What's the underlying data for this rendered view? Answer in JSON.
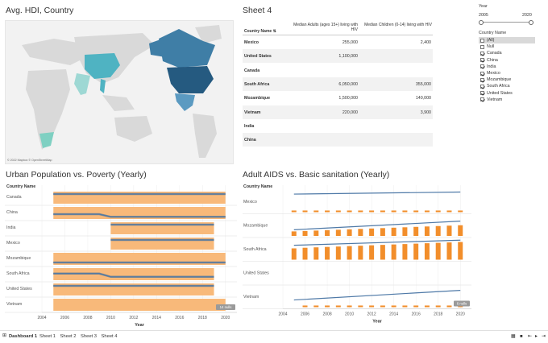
{
  "map_section": {
    "title": "Avg. HDI, Country",
    "credit": "© 2022 Mapbox © OpenStreetMap"
  },
  "table_section": {
    "title": "Sheet 4",
    "col_country": "Country Name",
    "col_adults": "Median Adults (ages 15+) living with HIV",
    "col_children": "Median Children (0-14) living with HIV",
    "rows": [
      {
        "country": "Mexico",
        "adults": "255,000",
        "children": "2,400"
      },
      {
        "country": "United States",
        "adults": "1,100,000",
        "children": ""
      },
      {
        "country": "Canada",
        "adults": "",
        "children": ""
      },
      {
        "country": "South Africa",
        "adults": "6,050,000",
        "children": "355,000"
      },
      {
        "country": "Mozambique",
        "adults": "1,500,000",
        "children": "140,000"
      },
      {
        "country": "Vietnam",
        "adults": "220,000",
        "children": "3,900"
      },
      {
        "country": "India",
        "adults": "",
        "children": ""
      },
      {
        "country": "China",
        "adults": "",
        "children": ""
      }
    ]
  },
  "filters": {
    "year_title": "Year",
    "year_min": "2005",
    "year_max": "2020",
    "country_title": "Country Name",
    "items": [
      {
        "label": "(All)",
        "checked": false
      },
      {
        "label": "Null",
        "checked": false
      },
      {
        "label": "Canada",
        "checked": true
      },
      {
        "label": "China",
        "checked": true
      },
      {
        "label": "India",
        "checked": true
      },
      {
        "label": "Mexico",
        "checked": true
      },
      {
        "label": "Mozambique",
        "checked": true
      },
      {
        "label": "South Africa",
        "checked": true
      },
      {
        "label": "United States",
        "checked": true
      },
      {
        "label": "Vietnam",
        "checked": true
      }
    ]
  },
  "urban_chart": {
    "title": "Urban Population vs. Poverty (Yearly)",
    "row_header": "Country Name",
    "rows": [
      "Canada",
      "China",
      "India",
      "Mexico",
      "Mozambique",
      "South Africa",
      "United States",
      "Vietnam"
    ],
    "x_ticks": [
      "2004",
      "2006",
      "2008",
      "2010",
      "2012",
      "2014",
      "2016",
      "2018",
      "2020"
    ],
    "xlabel": "Year",
    "nulls_badge": "14 nulls"
  },
  "aids_chart": {
    "title": "Adult AIDS vs. Basic sanitation (Yearly)",
    "row_header": "Country Name",
    "rows": [
      "Mexico",
      "Mozambique",
      "South Africa",
      "United States",
      "Vietnam"
    ],
    "x_ticks": [
      "2004",
      "2006",
      "2008",
      "2010",
      "2012",
      "2014",
      "2016",
      "2018",
      "2020"
    ],
    "xlabel": "Year",
    "nulls_badge": "6 nulls"
  },
  "bottom_tabs": [
    "Dashboard 1",
    "Sheet 1",
    "Sheet 2",
    "Sheet 3",
    "Sheet 4"
  ],
  "colors": {
    "orange": "#f8b97a",
    "bar_orange": "#f28e2b",
    "line_blue": "#4e79a7",
    "line_gray": "#8a8a8a"
  },
  "chart_data": [
    {
      "type": "line",
      "title": "Urban Population vs. Poverty (Yearly)",
      "xlabel": "Year",
      "x_range": [
        2004,
        2021
      ],
      "series": [
        {
          "name": "Canada",
          "x": [
            2005,
            2020
          ],
          "line": [
            0.8,
            0.8
          ]
        },
        {
          "name": "China",
          "x": [
            2005,
            2009,
            2010,
            2020
          ],
          "line": [
            0.4,
            0.4,
            0.18,
            0.18
          ]
        },
        {
          "name": "India",
          "x": [
            2010,
            2019
          ],
          "line": [
            0.8,
            0.8
          ]
        },
        {
          "name": "Mexico",
          "x": [
            2010,
            2019
          ],
          "line": [
            0.8,
            0.8
          ]
        },
        {
          "name": "Mozambique",
          "x": [
            2005,
            2020
          ],
          "line": [
            0.2,
            0.2
          ]
        },
        {
          "name": "South Africa",
          "x": [
            2005,
            2009,
            2010,
            2019
          ],
          "line": [
            0.55,
            0.55,
            0.28,
            0.28
          ]
        },
        {
          "name": "United States",
          "x": [
            2005,
            2019
          ],
          "line": [
            0.8,
            0.8
          ]
        },
        {
          "name": "Vietnam",
          "x": [],
          "line": []
        }
      ]
    },
    {
      "type": "bar",
      "title": "Adult AIDS vs. Basic sanitation (Yearly)",
      "xlabel": "Year",
      "x_range": [
        2004,
        2021
      ],
      "series": [
        {
          "name": "Mexico",
          "x": [
            2005,
            2020
          ],
          "line": [
            0.88,
            0.98
          ],
          "bar_years": [
            2005,
            2006,
            2007,
            2008,
            2009,
            2010,
            2011,
            2012,
            2013,
            2014,
            2015,
            2016,
            2017,
            2018,
            2019,
            2020
          ],
          "bars": [
            0.08,
            0.08,
            0.08,
            0.08,
            0.08,
            0.08,
            0.08,
            0.08,
            0.08,
            0.08,
            0.08,
            0.08,
            0.08,
            0.08,
            0.08,
            0.08
          ]
        },
        {
          "name": "Mozambique",
          "x": [
            2005,
            2020
          ],
          "line": [
            0.3,
            0.72
          ],
          "bar_years": [
            2005,
            2006,
            2007,
            2008,
            2009,
            2010,
            2011,
            2012,
            2013,
            2014,
            2015,
            2016,
            2017,
            2018,
            2019,
            2020
          ],
          "bars": [
            0.22,
            0.24,
            0.26,
            0.28,
            0.3,
            0.32,
            0.34,
            0.36,
            0.38,
            0.4,
            0.42,
            0.44,
            0.46,
            0.48,
            0.5,
            0.52
          ]
        },
        {
          "name": "South Africa",
          "x": [
            2005,
            2020
          ],
          "line": [
            0.7,
            0.95
          ],
          "bar_years": [
            2005,
            2006,
            2007,
            2008,
            2009,
            2010,
            2011,
            2012,
            2013,
            2014,
            2015,
            2016,
            2017,
            2018,
            2019,
            2020
          ],
          "bars": [
            0.55,
            0.58,
            0.6,
            0.62,
            0.64,
            0.66,
            0.68,
            0.7,
            0.72,
            0.74,
            0.76,
            0.78,
            0.8,
            0.82,
            0.84,
            0.86
          ]
        },
        {
          "name": "United States",
          "x": [],
          "line": [],
          "bar_years": [],
          "bars": []
        },
        {
          "name": "Vietnam",
          "x": [
            2005,
            2020
          ],
          "line": [
            0.35,
            0.82
          ],
          "bar_years": [
            2006,
            2007,
            2008,
            2009,
            2010,
            2011,
            2012,
            2013,
            2014,
            2015,
            2016,
            2017,
            2018,
            2019,
            2020
          ],
          "bars": [
            0.08,
            0.08,
            0.08,
            0.08,
            0.08,
            0.08,
            0.08,
            0.08,
            0.08,
            0.08,
            0.08,
            0.08,
            0.08,
            0.08,
            0.08
          ]
        }
      ]
    }
  ]
}
